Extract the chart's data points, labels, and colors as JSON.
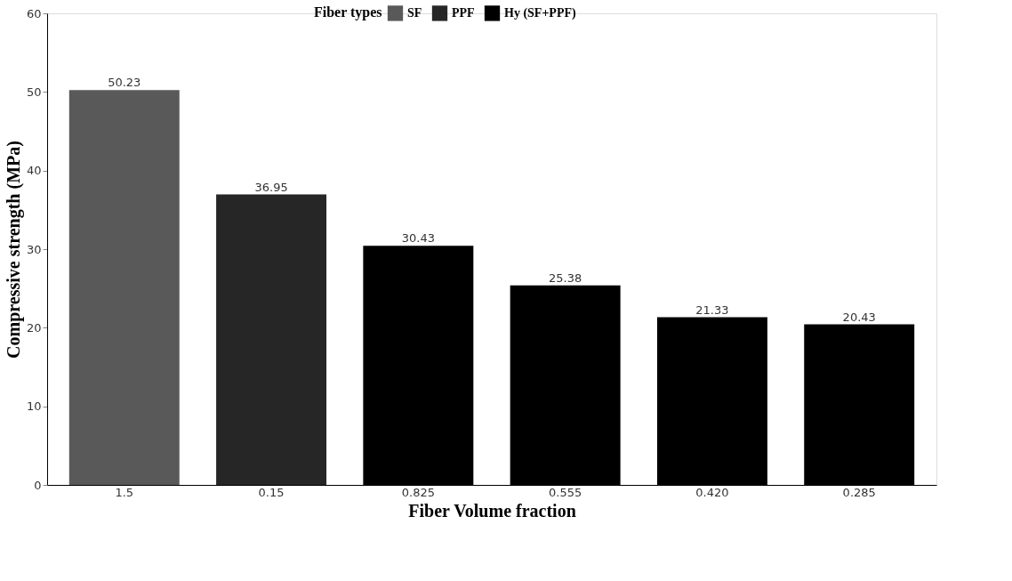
{
  "chart_data": {
    "type": "bar",
    "xlabel": "Fiber Volume fraction",
    "ylabel": "Compressive strength (MPa)",
    "legend_title": "Fiber types",
    "categories": [
      "1.5",
      "0.15",
      "0.825",
      "0.555",
      "0.420",
      "0.285"
    ],
    "series": [
      {
        "name": "SF",
        "color": "#595959",
        "values": [
          50.23,
          null,
          null,
          null,
          null,
          null
        ]
      },
      {
        "name": "PPF",
        "color": "#262626",
        "values": [
          null,
          36.95,
          null,
          null,
          null,
          null
        ]
      },
      {
        "name": "Hy (SF+PPF)",
        "color": "#000000",
        "values": [
          null,
          null,
          30.43,
          25.38,
          21.33,
          20.43
        ]
      }
    ],
    "ylim": [
      0,
      60
    ],
    "yticks": [
      0,
      10,
      20,
      30,
      40,
      50,
      60
    ],
    "grid": false,
    "legend": "top",
    "data_labels": true
  }
}
